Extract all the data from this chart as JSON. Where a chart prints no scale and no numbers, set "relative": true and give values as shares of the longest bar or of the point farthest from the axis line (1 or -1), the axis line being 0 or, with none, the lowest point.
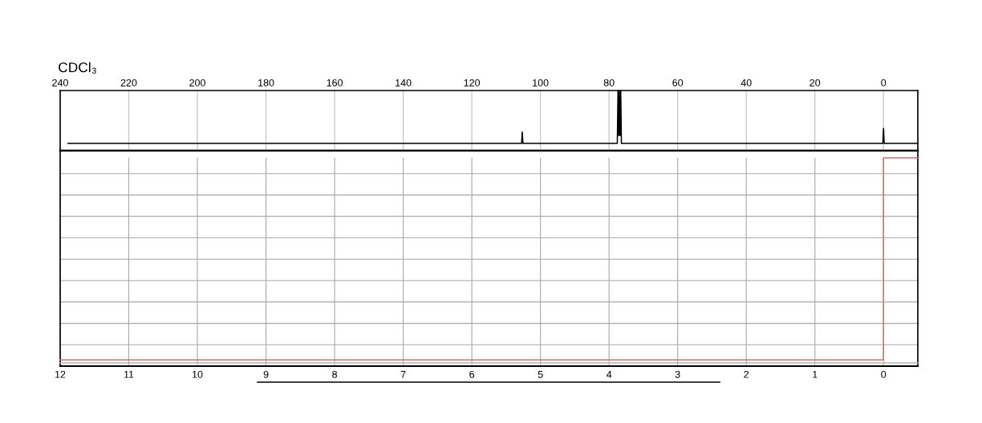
{
  "chart_data": [
    {
      "type": "line",
      "relative": true,
      "tick_labels": "x",
      "grid": "x",
      "annotations": [
        "CDCl₃"
      ],
      "xlim": [
        240,
        -10
      ],
      "xticks": [
        240,
        220,
        200,
        180,
        160,
        140,
        120,
        100,
        80,
        60,
        40,
        20,
        0
      ],
      "series": [
        {
          "color": "#000000",
          "x": [
            237.7,
            105.5,
            105.3,
            105.1,
            77.6,
            77.4,
            77.2,
            77.0,
            76.8,
            76.6,
            76.4,
            0.2,
            0,
            -0.2,
            -10
          ],
          "values": [
            0.12,
            0.12,
            0.31,
            0.12,
            0.12,
            1,
            0.25,
            1,
            0.25,
            1,
            0.12,
            0.12,
            0.37,
            0.12,
            0.12
          ]
        }
      ]
    },
    {
      "type": "line",
      "relative": true,
      "tick_labels": "x",
      "grid": true,
      "xlim": [
        12,
        -0.5
      ],
      "xticks": [
        12,
        11,
        10,
        9,
        8,
        7,
        6,
        5,
        4,
        3,
        2,
        1,
        0
      ],
      "series": [
        {
          "color": "#b4b4b4",
          "x": [
            12,
            -0.5
          ],
          "values": [
            0.015,
            0.015
          ]
        },
        {
          "color": "#d86c6c",
          "x": [
            12,
            0,
            0,
            -0.5
          ],
          "values": [
            0.03,
            0.03,
            1,
            1
          ]
        }
      ]
    }
  ]
}
